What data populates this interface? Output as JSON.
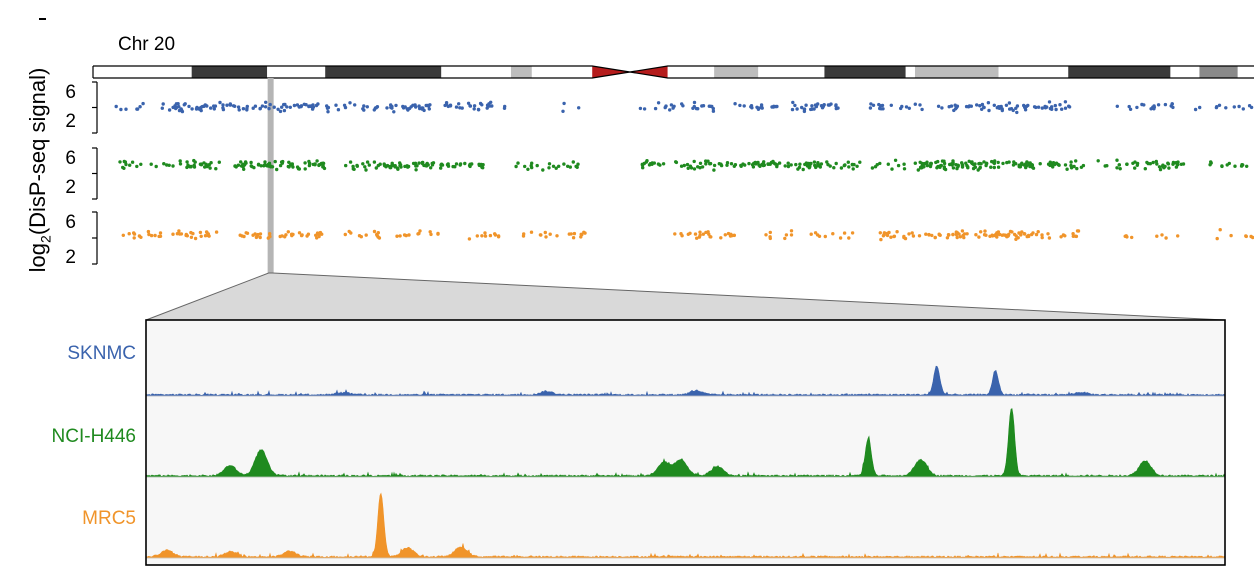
{
  "chart_data": {
    "type": "scatter",
    "chromosome_label": "Chr 20",
    "ylabel_prefix": "log",
    "ylabel_sub": "2",
    "ylabel_suffix": "(DisP-seq signal)",
    "y_ticks": [
      "6",
      "2"
    ],
    "ylim": [
      0,
      8
    ],
    "series": [
      {
        "name": "SKNMC",
        "color": "#3a63ad"
      },
      {
        "name": "NCI-H446",
        "color": "#1f8a1f"
      },
      {
        "name": "MRC5",
        "color": "#f0942a"
      }
    ],
    "ideogram_bands": [
      {
        "start": 0.0,
        "end": 0.085,
        "stain": "white"
      },
      {
        "start": 0.085,
        "end": 0.15,
        "stain": "dark"
      },
      {
        "start": 0.15,
        "end": 0.2,
        "stain": "white"
      },
      {
        "start": 0.2,
        "end": 0.3,
        "stain": "dark"
      },
      {
        "start": 0.3,
        "end": 0.36,
        "stain": "white"
      },
      {
        "start": 0.36,
        "end": 0.378,
        "stain": "light"
      },
      {
        "start": 0.378,
        "end": 0.43,
        "stain": "white"
      },
      {
        "start": 0.43,
        "end": 0.495,
        "stain": "centromere"
      },
      {
        "start": 0.495,
        "end": 0.535,
        "stain": "white"
      },
      {
        "start": 0.535,
        "end": 0.573,
        "stain": "light"
      },
      {
        "start": 0.573,
        "end": 0.63,
        "stain": "white"
      },
      {
        "start": 0.63,
        "end": 0.7,
        "stain": "dark"
      },
      {
        "start": 0.7,
        "end": 0.708,
        "stain": "white"
      },
      {
        "start": 0.708,
        "end": 0.78,
        "stain": "light"
      },
      {
        "start": 0.78,
        "end": 0.84,
        "stain": "white"
      },
      {
        "start": 0.84,
        "end": 0.928,
        "stain": "dark"
      },
      {
        "start": 0.928,
        "end": 0.953,
        "stain": "white"
      },
      {
        "start": 0.953,
        "end": 0.986,
        "stain": "mid"
      },
      {
        "start": 0.986,
        "end": 1.0,
        "stain": "white"
      }
    ],
    "highlight_position": 0.153,
    "zoom_peaks": [
      [
        {
          "pos": 0.18,
          "h": 0.06
        },
        {
          "pos": 0.37,
          "h": 0.1
        },
        {
          "pos": 0.51,
          "h": 0.12
        },
        {
          "pos": 0.735,
          "h": 0.85
        },
        {
          "pos": 0.79,
          "h": 0.7
        },
        {
          "pos": 0.87,
          "h": 0.07
        }
      ],
      [
        {
          "pos": 0.074,
          "h": 0.15
        },
        {
          "pos": 0.103,
          "h": 0.38
        },
        {
          "pos": 0.48,
          "h": 0.2
        },
        {
          "pos": 0.496,
          "h": 0.24
        },
        {
          "pos": 0.53,
          "h": 0.14
        },
        {
          "pos": 0.671,
          "h": 0.55
        },
        {
          "pos": 0.72,
          "h": 0.24
        },
        {
          "pos": 0.805,
          "h": 1.0
        },
        {
          "pos": 0.93,
          "h": 0.22
        }
      ],
      [
        {
          "pos": 0.015,
          "h": 0.1
        },
        {
          "pos": 0.075,
          "h": 0.08
        },
        {
          "pos": 0.13,
          "h": 0.09
        },
        {
          "pos": 0.215,
          "h": 1.0
        },
        {
          "pos": 0.24,
          "h": 0.14
        },
        {
          "pos": 0.29,
          "h": 0.16
        }
      ]
    ]
  }
}
